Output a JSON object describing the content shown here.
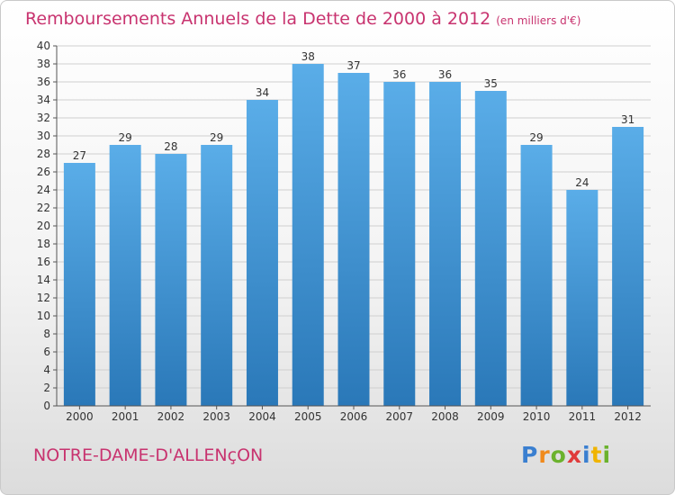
{
  "header": {
    "title": "Remboursements Annuels de la Dette de 2000 à 2012",
    "subtitle": "(en milliers d'€)"
  },
  "footer": {
    "commune": "NOTRE-DAME-D'ALLENçON",
    "logo_text": "Proxiti",
    "logo_letters": [
      "P",
      "r",
      "o",
      "x",
      "i",
      "t",
      "i"
    ],
    "logo_colors": [
      "#3a7fd0",
      "#f08a1c",
      "#6bb22d",
      "#e03b3b",
      "#3a7fd0",
      "#f0b400",
      "#6bb22d"
    ]
  },
  "colors": {
    "bar_light": "#5aade8",
    "bar_dark": "#2a78b8",
    "title": "#c8336f",
    "grid": "#cfcfcf"
  },
  "chart_data": {
    "type": "bar",
    "categories": [
      "2000",
      "2001",
      "2002",
      "2003",
      "2004",
      "2005",
      "2006",
      "2007",
      "2008",
      "2009",
      "2010",
      "2011",
      "2012"
    ],
    "values": [
      27,
      29,
      28,
      29,
      34,
      38,
      37,
      36,
      36,
      35,
      29,
      24,
      31
    ],
    "title": "Remboursements Annuels de la Dette de 2000 à 2012",
    "subtitle": "(en milliers d'€)",
    "ylim": [
      0,
      40
    ],
    "yticks": [
      0,
      2,
      4,
      6,
      8,
      10,
      12,
      14,
      16,
      18,
      20,
      22,
      24,
      26,
      28,
      30,
      32,
      34,
      36,
      38,
      40
    ],
    "grid": true,
    "data_labels": true
  }
}
